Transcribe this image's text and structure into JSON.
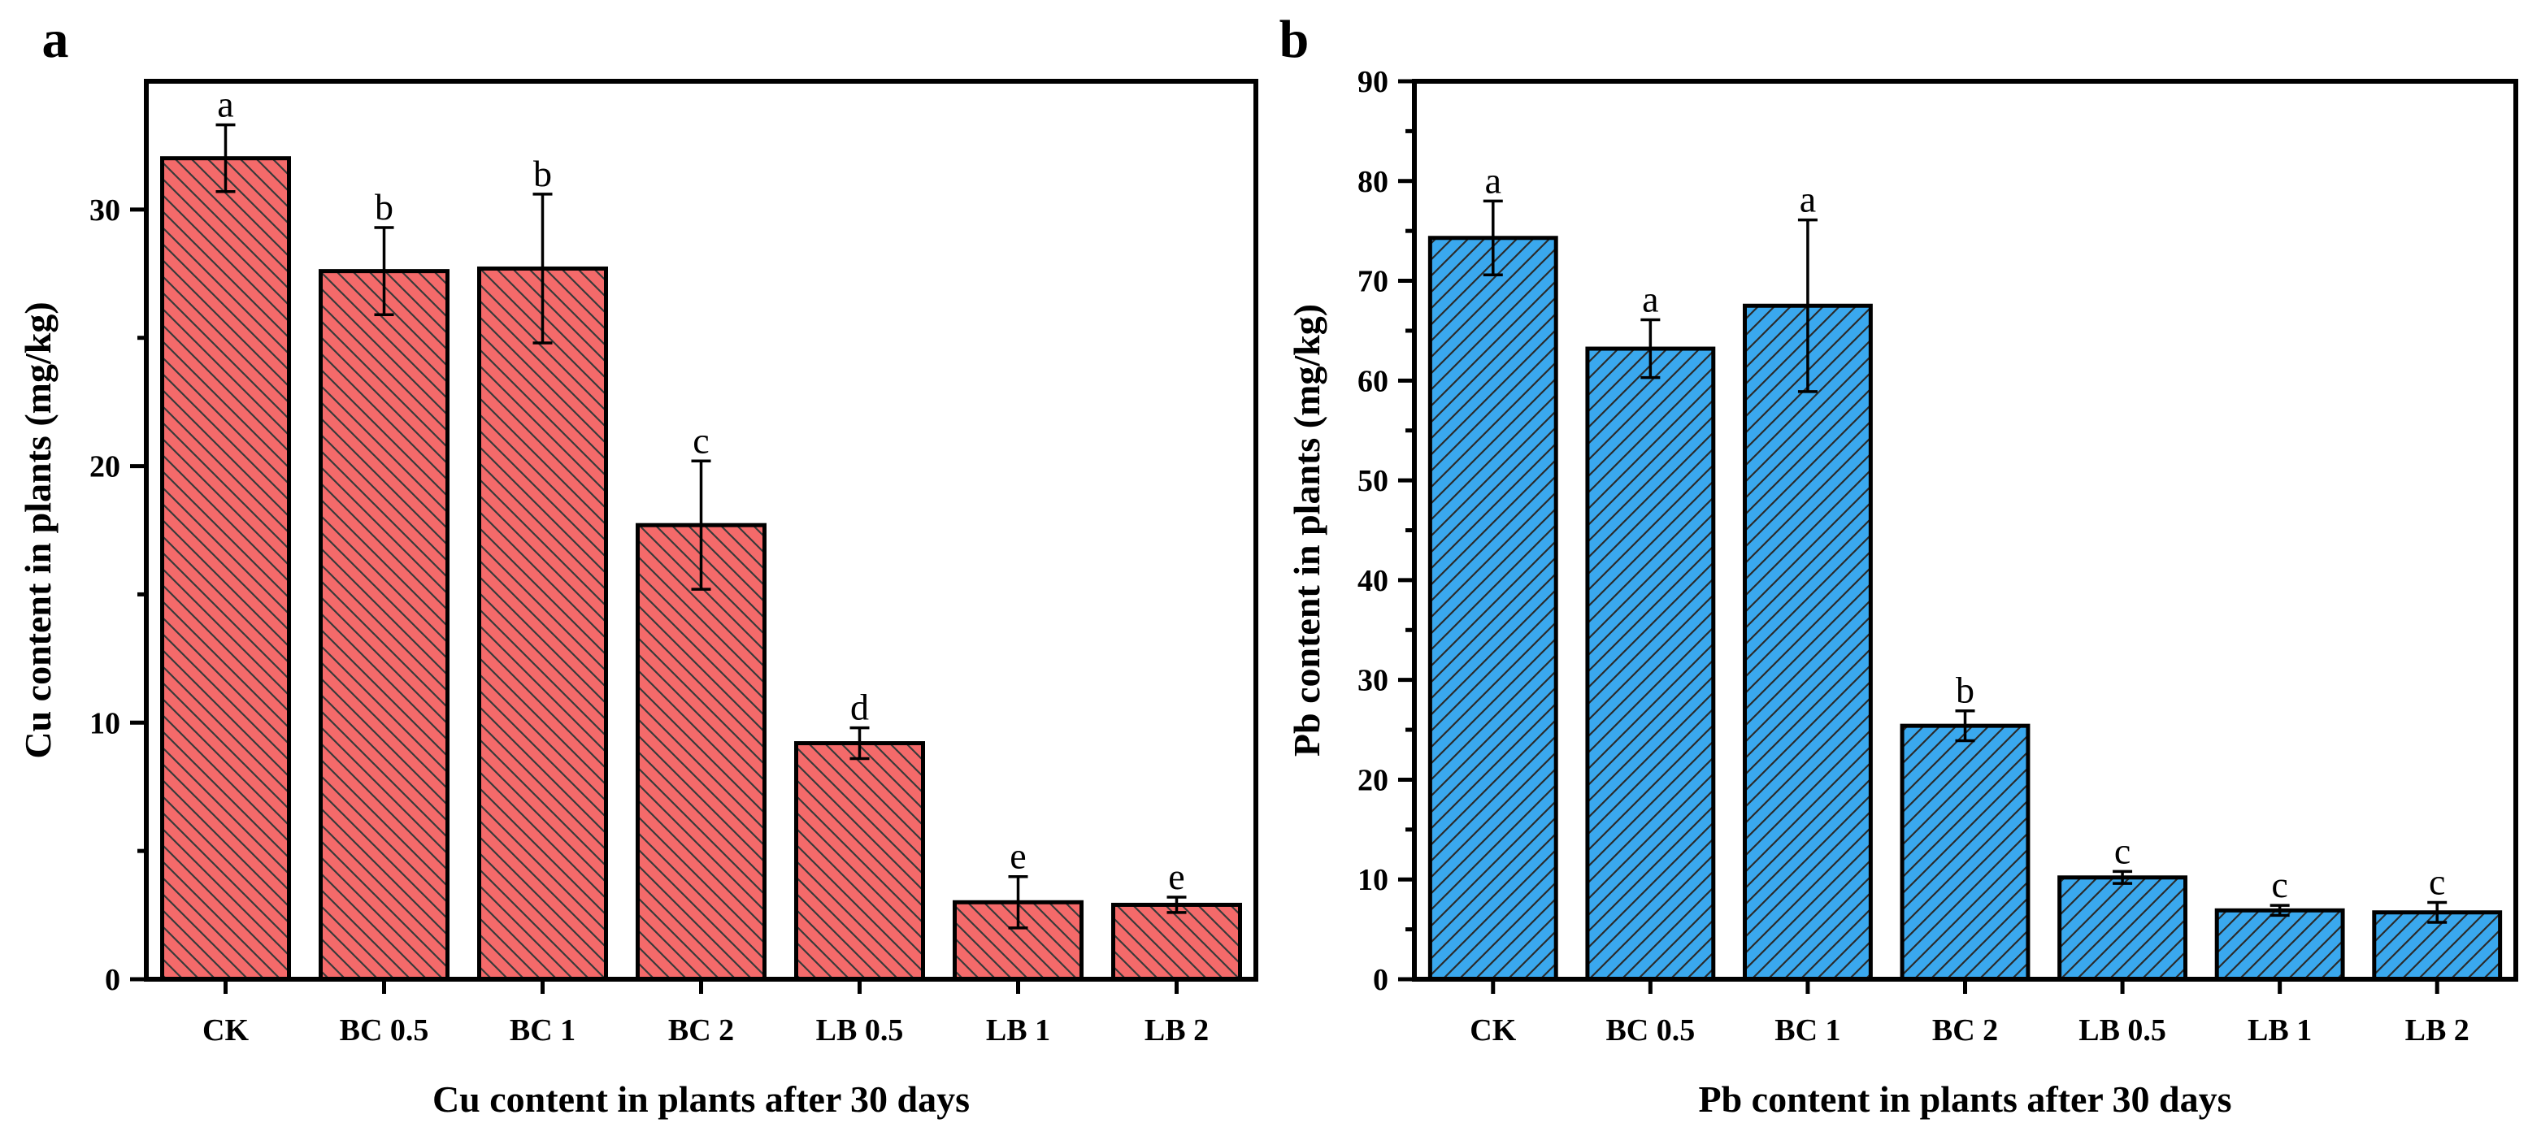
{
  "chart_data": [
    {
      "panel": "a",
      "type": "bar",
      "xlabel": "Cu content in plants after 30 days",
      "ylabel": "Cu content in plants (mg/kg)",
      "categories": [
        "CK",
        "BC 0.5",
        "BC 1",
        "BC 2",
        "LB 0.5",
        "LB 1",
        "LB 2"
      ],
      "values": [
        32.0,
        27.6,
        27.7,
        17.7,
        9.2,
        3.0,
        2.9
      ],
      "errors": [
        1.3,
        1.7,
        2.9,
        2.5,
        0.6,
        1.0,
        0.3
      ],
      "significance": [
        "a",
        "b",
        "b",
        "c",
        "d",
        "e",
        "e"
      ],
      "ylim": [
        0,
        35
      ],
      "yticks": [
        0,
        10,
        20,
        30
      ],
      "yticks_minor": [
        5,
        15,
        25
      ],
      "color": "#f46a6a",
      "hatch": "backslash",
      "grid": false,
      "legend": "none"
    },
    {
      "panel": "b",
      "type": "bar",
      "xlabel": "Pb content in plants after 30 days",
      "ylabel": "Pb content in plants (mg/kg)",
      "categories": [
        "CK",
        "BC 0.5",
        "BC 1",
        "BC 2",
        "LB 0.5",
        "LB 1",
        "LB 2"
      ],
      "values": [
        74.3,
        63.2,
        67.5,
        25.4,
        10.2,
        6.9,
        6.7
      ],
      "errors": [
        3.7,
        2.9,
        8.6,
        1.5,
        0.6,
        0.5,
        1.0
      ],
      "significance": [
        "a",
        "a",
        "a",
        "b",
        "c",
        "c",
        "c"
      ],
      "ylim": [
        0,
        90
      ],
      "yticks": [
        0,
        10,
        20,
        30,
        40,
        50,
        60,
        70,
        80,
        90
      ],
      "yticks_minor": [
        5,
        15,
        25,
        35,
        45,
        55,
        65,
        75,
        85
      ],
      "color": "#3aa8ee",
      "hatch": "slash",
      "grid": false,
      "legend": "none"
    }
  ]
}
